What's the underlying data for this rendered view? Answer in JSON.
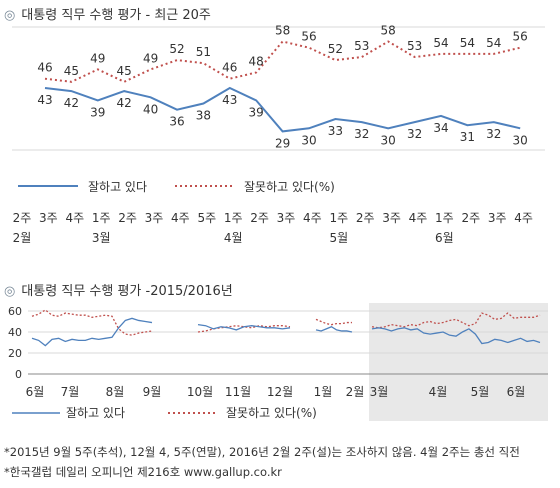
{
  "colors": {
    "approve": "#4f81bd",
    "disapprove": "#c0504d",
    "grid": "#d9d9d9",
    "shade": "#e8e8e8"
  },
  "chart_data": [
    {
      "type": "line",
      "title": "대통령 직무 수행 평가 - 최근 20주",
      "title_icon": "◎",
      "x_labels": [
        {
          "week": "2주",
          "month": "2월"
        },
        {
          "week": "3주",
          "month": ""
        },
        {
          "week": "4주",
          "month": ""
        },
        {
          "week": "1주",
          "month": "3월"
        },
        {
          "week": "2주",
          "month": ""
        },
        {
          "week": "3주",
          "month": ""
        },
        {
          "week": "4주",
          "month": ""
        },
        {
          "week": "5주",
          "month": ""
        },
        {
          "week": "1주",
          "month": "4월"
        },
        {
          "week": "2주",
          "month": ""
        },
        {
          "week": "3주",
          "month": ""
        },
        {
          "week": "4주",
          "month": ""
        },
        {
          "week": "1주",
          "month": "5월"
        },
        {
          "week": "2주",
          "month": ""
        },
        {
          "week": "3주",
          "month": ""
        },
        {
          "week": "4주",
          "month": ""
        },
        {
          "week": "1주",
          "month": "6월"
        },
        {
          "week": "2주",
          "month": ""
        },
        {
          "week": "3주",
          "month": ""
        },
        {
          "week": "4주",
          "month": ""
        }
      ],
      "series": [
        {
          "name": "잘하고 있다",
          "style": "solid",
          "values": [
            43,
            42,
            39,
            42,
            40,
            36,
            38,
            43,
            39,
            29,
            30,
            33,
            32,
            30,
            32,
            34,
            31,
            32,
            30
          ]
        },
        {
          "name": "잘못하고 있다(%)",
          "style": "dotted",
          "values": [
            46,
            45,
            49,
            45,
            49,
            52,
            51,
            46,
            48,
            58,
            56,
            52,
            53,
            58,
            53,
            54,
            54,
            54,
            56
          ]
        }
      ],
      "ylim": [
        20,
        65
      ],
      "grid": false,
      "legend": "bottom"
    },
    {
      "type": "line",
      "title": "대통령 직무 수행 평가 -2015/2016년",
      "title_icon": "◎",
      "yticks": [
        0,
        20,
        40,
        60
      ],
      "ylim": [
        0,
        65
      ],
      "x_months": [
        "6월",
        "7월",
        "8월",
        "9월",
        "10월",
        "11월",
        "12월",
        "1월",
        "2월",
        "3월",
        "4월",
        "5월",
        "6월"
      ],
      "shaded_from": "2월",
      "series": [
        {
          "name": "잘하고 있다",
          "style": "solid",
          "segments": [
            [
              34,
              32,
              27,
              33,
              34,
              31,
              33,
              32,
              32,
              34,
              33,
              34,
              35,
              44,
              51,
              53,
              51,
              50,
              49
            ],
            [
              47,
              46,
              43,
              45,
              44,
              42,
              45,
              46,
              45,
              44,
              44,
              43,
              44
            ],
            [
              42,
              41,
              43,
              45,
              42,
              41,
              41,
              40
            ],
            [
              43,
              44,
              43,
              41,
              43,
              44,
              42,
              43,
              39,
              38,
              39,
              40,
              37,
              36,
              40,
              43,
              38,
              29,
              30,
              33,
              32,
              30,
              32,
              34,
              31,
              32,
              30
            ]
          ]
        },
        {
          "name": "잘못하고 있다(%)",
          "style": "dotted",
          "segments": [
            [
              55,
              57,
              61,
              56,
              55,
              58,
              57,
              56,
              56,
              54,
              55,
              56,
              55,
              43,
              38,
              37,
              39,
              40,
              41
            ],
            [
              40,
              41,
              43,
              44,
              45,
              46,
              45,
              44,
              46,
              45,
              46,
              46,
              45
            ],
            [
              52,
              50,
              48,
              47,
              48,
              48,
              49,
              49
            ],
            [
              45,
              44,
              45,
              47,
              46,
              45,
              47,
              46,
              49,
              50,
              48,
              49,
              51,
              52,
              49,
              46,
              48,
              58,
              56,
              52,
              53,
              58,
              53,
              54,
              54,
              54,
              56
            ]
          ]
        }
      ],
      "grid": true,
      "legend": "bottom"
    }
  ],
  "legend": {
    "approve": "잘하고 있다",
    "disapprove": "잘못하고 있다(%)"
  },
  "footnotes": [
    "*2015년 9월 5주(추석), 12월 4, 5주(연말), 2016년 2월 2주(설)는 조사하지 않음. 4월 2주는 총선 직전",
    "*한국갤럽 데일리 오피니언 제216호 www.gallup.co.kr"
  ]
}
